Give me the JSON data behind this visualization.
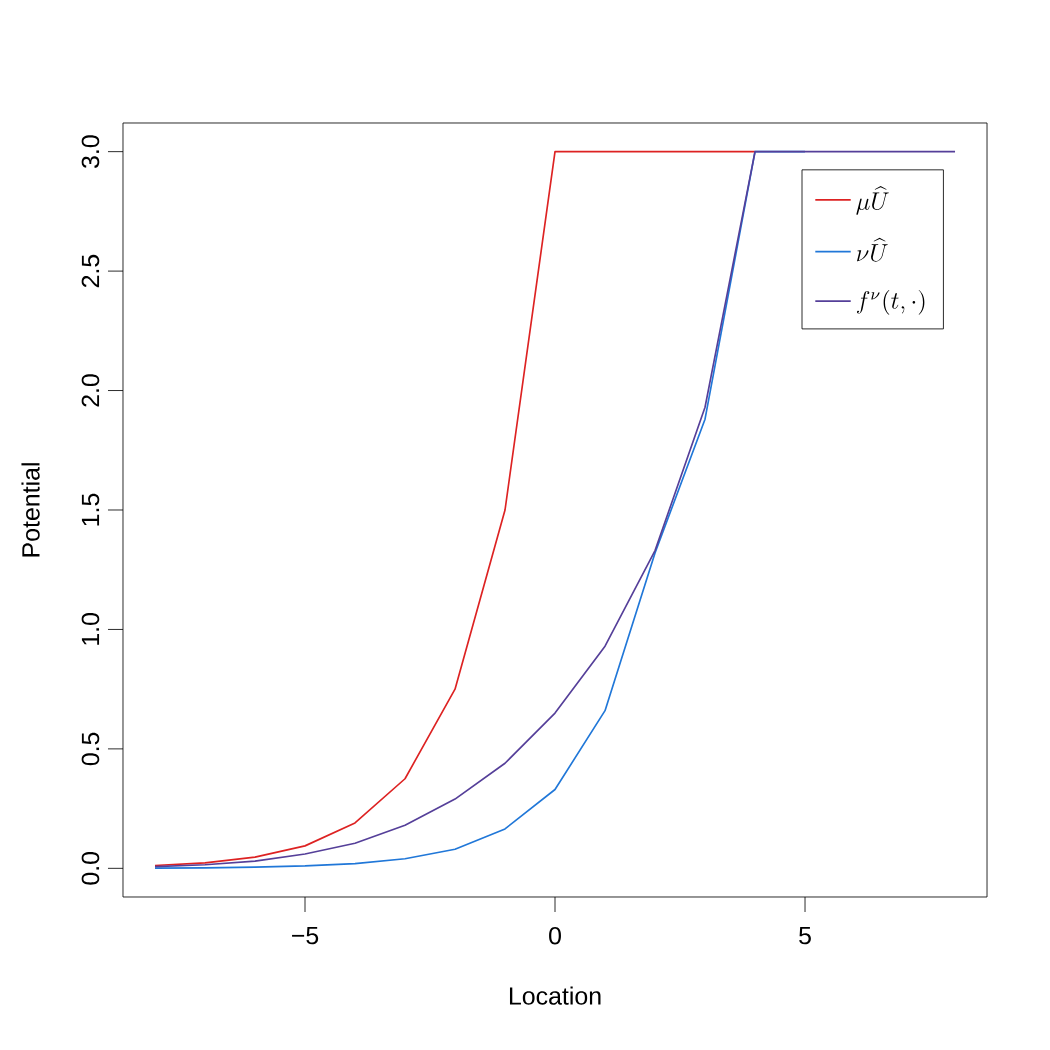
{
  "chart_data": {
    "type": "line",
    "xlabel": "Location",
    "ylabel": "Potential",
    "x": [
      -8,
      -7,
      -6,
      -5,
      -4,
      -3,
      -2,
      -1,
      0,
      1,
      2,
      3,
      4,
      5,
      6,
      7,
      8
    ],
    "series": [
      {
        "name": "\\mu\\widehat{U}",
        "color": "#dd2222",
        "values": [
          0.012,
          0.023,
          0.047,
          0.094,
          0.19,
          0.375,
          0.75,
          1.5,
          3,
          3,
          3,
          3,
          3,
          null,
          null,
          null,
          null
        ]
      },
      {
        "name": "\\nu\\widehat{U}",
        "color": "#2077d8",
        "values": [
          0.001,
          0.002,
          0.005,
          0.01,
          0.02,
          0.04,
          0.08,
          0.165,
          0.33,
          0.66,
          1.32,
          1.88,
          3,
          3,
          null,
          null,
          null
        ]
      },
      {
        "name": "f^{\\nu}(t,\\cdot)",
        "color": "#553f99",
        "values": [
          0.007,
          0.015,
          0.03,
          0.06,
          0.105,
          0.18,
          0.29,
          0.44,
          0.65,
          0.93,
          1.33,
          1.93,
          3,
          3,
          3,
          3,
          3
        ]
      }
    ],
    "xlim": [
      -8.64,
      8.64
    ],
    "ylim": [
      -0.12,
      3.12
    ],
    "xticks": [
      {
        "value": -5,
        "label": "−5"
      },
      0,
      5
    ],
    "yticks": [
      {
        "value": 0,
        "label": "0.0"
      },
      {
        "value": 0.5,
        "label": "0.5"
      },
      {
        "value": 1,
        "label": "1.0"
      },
      {
        "value": 1.5,
        "label": "1.5"
      },
      {
        "value": 2,
        "label": "2.0"
      },
      {
        "value": 2.5,
        "label": "2.5"
      },
      {
        "value": 3,
        "label": "3.0"
      }
    ],
    "legend": "top right",
    "grid": false,
    "marker": "none",
    "line_style": "solid"
  }
}
